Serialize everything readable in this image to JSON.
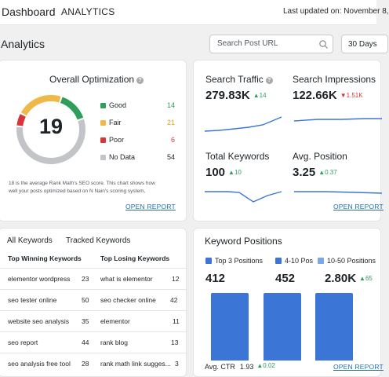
{
  "header": {
    "title": "Dashboard",
    "subtitle": "ANALYTICS",
    "last_updated": "Last updated on: November 8,"
  },
  "analytics": {
    "title": "Analytics",
    "search_placeholder": "Search Post URL",
    "range": "30 Days"
  },
  "optimization": {
    "title": "Overall Optimization",
    "score": "19",
    "legend": [
      {
        "label": "Good",
        "value": "14",
        "color": "#2e9e5b"
      },
      {
        "label": "Fair",
        "value": "21",
        "color": "#f0b849"
      },
      {
        "label": "Poor",
        "value": "6",
        "color": "#d63638"
      },
      {
        "label": "No Data",
        "value": "54",
        "color": "#c3c4c7"
      }
    ],
    "note_line1": "18 is the average Rank Math's SEO score. This chart shows how",
    "note_line2": "well your posts optimized based on N Nain's scoring system,",
    "open_report": "OPEN REPORT"
  },
  "traffic": {
    "search_traffic": {
      "label": "Search Traffic",
      "value": "279.83K",
      "delta": "14",
      "trend": "up"
    },
    "search_impressions": {
      "label": "Search Impressions",
      "value": "122.66K",
      "delta": "1.51K",
      "trend": "down"
    },
    "total_keywords": {
      "label": "Total Keywords",
      "value": "100",
      "delta": "10",
      "trend": "up"
    },
    "avg_position": {
      "label": "Avg. Position",
      "value": "3.25",
      "delta": "0.37",
      "trend": "up"
    },
    "open_report": "OPEN REPORT"
  },
  "keywords": {
    "tab_all": "All Keywords",
    "tab_tracked": "Tracked Keywords",
    "winning_header": "Top Winning Keywords",
    "losing_header": "Top Losing Keywords",
    "rows": [
      {
        "win": "elementor wordpress",
        "win_pos": "23",
        "lose": "what is elementor",
        "lose_pos": "12"
      },
      {
        "win": "seo tester online",
        "win_pos": "50",
        "lose": "seo checker online",
        "lose_pos": "42"
      },
      {
        "win": "website seo analysis",
        "win_pos": "35",
        "lose": "elementor",
        "lose_pos": "11"
      },
      {
        "win": "seo report",
        "win_pos": "44",
        "lose": "rank blog",
        "lose_pos": "13"
      },
      {
        "win": "seo analysis free tool",
        "win_pos": "28",
        "lose": "rank math link sugges...",
        "lose_pos": "3"
      }
    ]
  },
  "positions": {
    "title": "Keyword Positions",
    "groups": [
      {
        "label": "Top 3 Positions",
        "value": "412",
        "color": "#3b76d6"
      },
      {
        "label": "4-10 Pos",
        "value": "452",
        "color": "#3b76d6"
      },
      {
        "label": "10-50 Positions",
        "value": "2.80K",
        "color": "#7aa7e6",
        "delta": "65"
      }
    ],
    "ctr_label": "Avg. CTR",
    "ctr_value": "1.93",
    "ctr_delta": "0.02",
    "open_report": "OPEN REPORT"
  }
}
